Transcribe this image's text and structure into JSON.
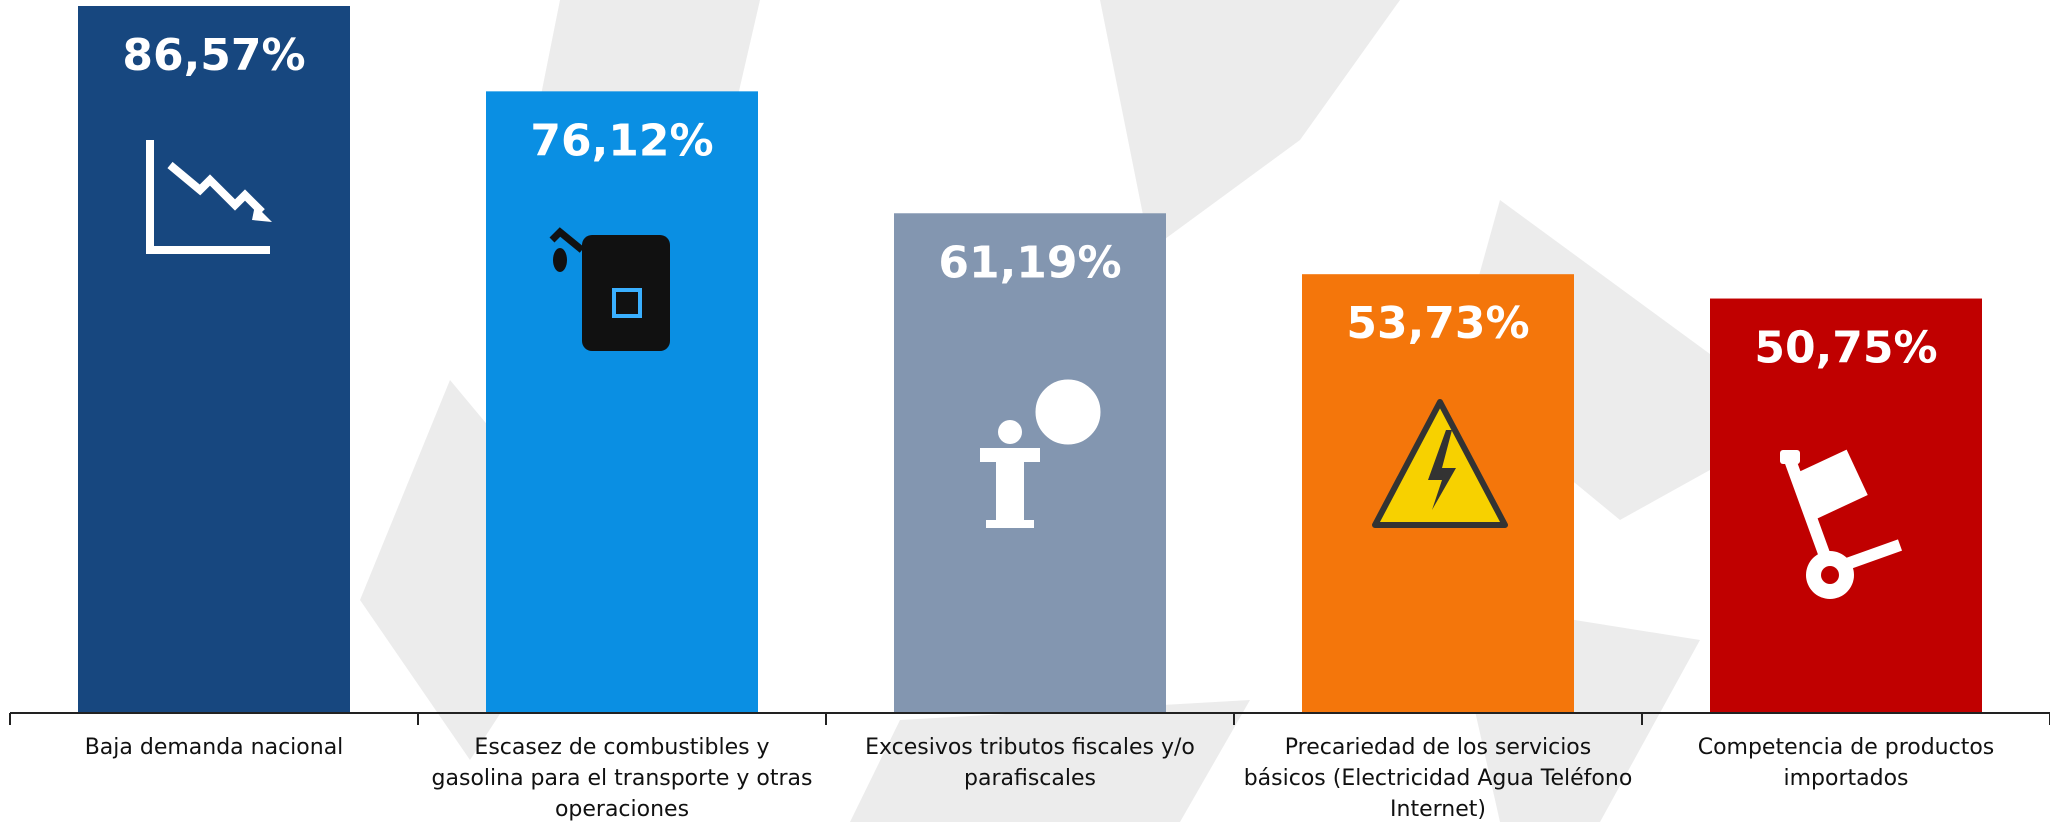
{
  "chart_data": {
    "type": "bar",
    "categories": [
      "Baja demanda nacional",
      "Escasez de combustibles y gasolina para el transporte y otras operaciones",
      "Excesivos tributos fiscales y/o parafiscales",
      "Precariedad de los servicios básicos (Electricidad Agua Teléfono Internet)",
      "Competencia de productos importados"
    ],
    "values": [
      86.57,
      76.12,
      61.19,
      53.73,
      50.75
    ],
    "value_labels": [
      "86,57%",
      "76,12%",
      "61,19%",
      "53,73%",
      "50,75%"
    ],
    "colors": [
      "#17477f",
      "#0a8fe3",
      "#8396b0",
      "#f4760b",
      "#c00000"
    ]
  }
}
